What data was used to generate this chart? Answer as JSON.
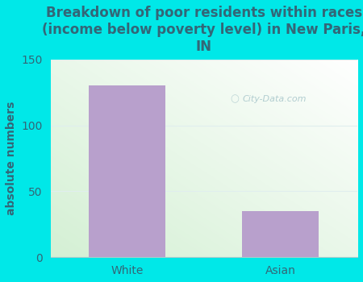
{
  "categories": [
    "White",
    "Asian"
  ],
  "values": [
    130,
    35
  ],
  "bar_color": "#b8a0cc",
  "title": "Breakdown of poor residents within races\n(income below poverty level) in New Paris,\nIN",
  "ylabel": "absolute numbers",
  "ylim": [
    0,
    150
  ],
  "yticks": [
    0,
    50,
    100,
    150
  ],
  "background_color": "#00e8e8",
  "plot_bg_start": "#d4f0d4",
  "plot_bg_end": "#f0faf0",
  "title_color": "#336677",
  "label_color": "#336677",
  "tick_color": "#336677",
  "title_fontsize": 12,
  "ylabel_fontsize": 10,
  "tick_fontsize": 10,
  "watermark_text": "City-Data.com",
  "watermark_color": "#aac8cc",
  "grid_color": "#e0eeee"
}
